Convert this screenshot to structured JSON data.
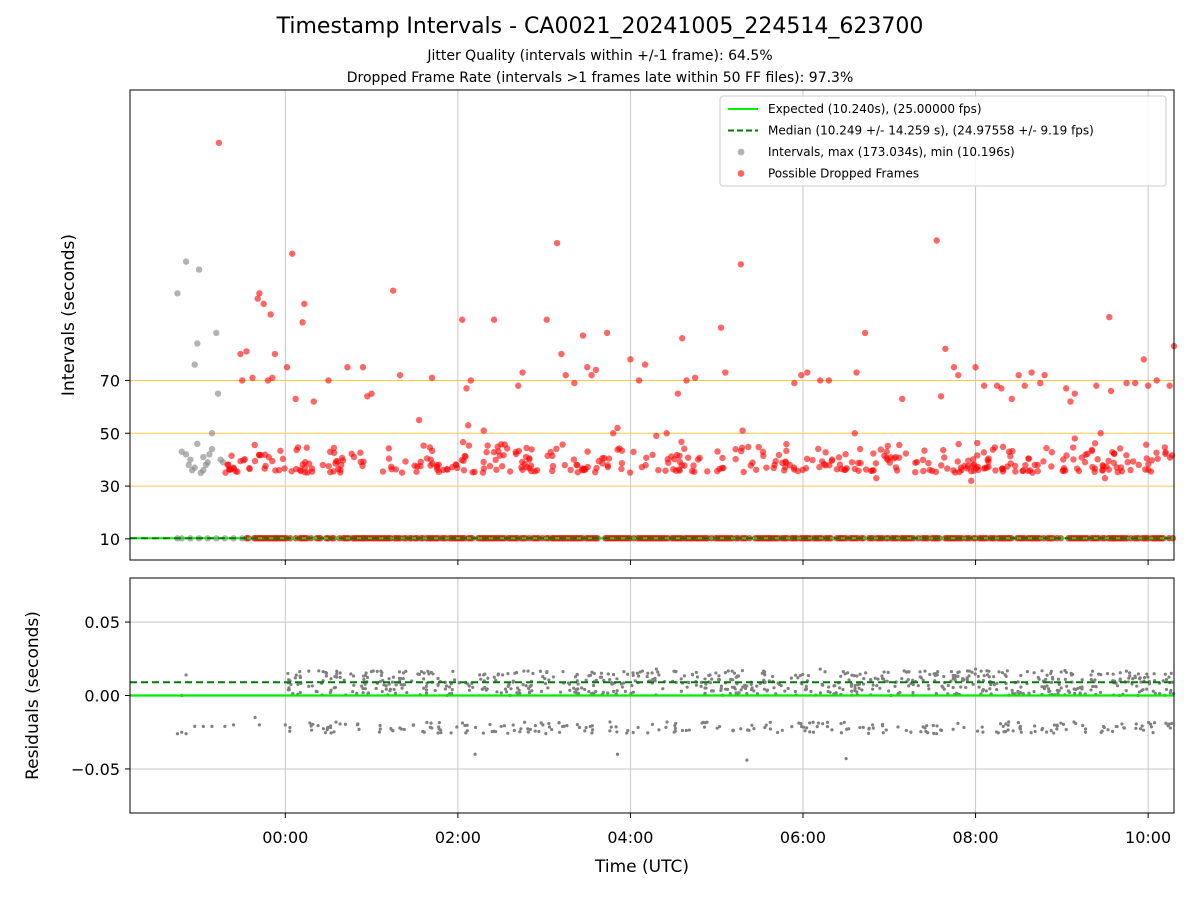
{
  "title": "Timestamp Intervals - CA0021_20241005_224514_623700",
  "subtitles": [
    "Jitter Quality (intervals within +/-1 frame): 64.5%",
    "Dropped Frame Rate (intervals >1 frames late within 50 FF files): 97.3%"
  ],
  "colors": {
    "expected": "#00ee00",
    "median": "#007a00",
    "intervals": "#808080",
    "dropped": "#ff0000",
    "threshold": "#ffc74d",
    "grid": "#c8c8c8"
  },
  "chart_data": [
    {
      "type": "scatter",
      "ylabel": "Intervals (seconds)",
      "xlabel": "",
      "x_axis": {
        "type": "time",
        "unit": "hours UTC from 2024-10-05 00:00",
        "xlim": [
          -1.8,
          10.3
        ],
        "ticks": [
          0,
          2,
          4,
          6,
          8,
          10
        ]
      },
      "ylim": [
        2,
        180
      ],
      "yticks": [
        10,
        30,
        50,
        70
      ],
      "yticklabels": [
        "10",
        "30",
        "50",
        "70"
      ],
      "grid": true,
      "threshold_lines": [
        30,
        50,
        70
      ],
      "legend": {
        "placement": "top-right",
        "entries": [
          {
            "label": "Expected (10.240s), (25.00000 fps)",
            "style": "solid-line",
            "color_key": "expected"
          },
          {
            "label": "Median (10.249 +/- 14.259 s), (24.97558 +/- 9.19 fps)",
            "style": "dashed-line",
            "color_key": "median"
          },
          {
            "label": "Intervals, max (173.034s), min (10.196s)",
            "style": "dot",
            "color_key": "intervals"
          },
          {
            "label": "Possible Dropped Frames",
            "style": "dot",
            "color_key": "dropped"
          }
        ]
      },
      "reference_lines": [
        {
          "name": "Expected",
          "y": 10.24
        },
        {
          "name": "Median",
          "y": 10.249
        }
      ],
      "series": [
        {
          "name": "Intervals",
          "points": [
            [
              -1.25,
              103
            ],
            [
              -1.15,
              115
            ],
            [
              -1.0,
              112
            ],
            [
              -1.1,
              40
            ],
            [
              -1.05,
              37
            ],
            [
              -0.98,
              35
            ],
            [
              -0.92,
              38
            ],
            [
              -0.88,
              42
            ],
            [
              -0.85,
              44
            ],
            [
              -1.2,
              43
            ],
            [
              -1.15,
              42
            ],
            [
              -1.12,
              38
            ],
            [
              -1.08,
              36
            ],
            [
              -1.02,
              46
            ],
            [
              -0.95,
              41
            ],
            [
              -0.85,
              50
            ],
            [
              -0.8,
              88
            ],
            [
              -0.78,
              65
            ],
            [
              -0.75,
              40
            ],
            [
              -0.72,
              39
            ],
            [
              -1.02,
              84
            ],
            [
              -1.05,
              76
            ],
            [
              -0.95,
              36
            ],
            [
              -0.9,
              39
            ],
            [
              -1.25,
              10.2
            ],
            [
              -1.2,
              10.2
            ],
            [
              -1.1,
              10.2
            ],
            [
              -1.0,
              10.2
            ],
            [
              -0.9,
              10.2
            ],
            [
              -0.8,
              10.2
            ],
            [
              -0.7,
              10.2
            ],
            [
              -0.6,
              10.2
            ],
            [
              -0.5,
              10.2
            ],
            [
              -0.3,
              10.2
            ],
            [
              -0.1,
              10.2
            ],
            [
              0.2,
              10.2
            ],
            [
              0.5,
              10.2
            ],
            [
              0.9,
              10.2
            ],
            [
              1.5,
              10.2
            ],
            [
              2.3,
              10.2
            ],
            [
              3.1,
              10.2
            ],
            [
              4.6,
              10.2
            ],
            [
              5.6,
              10.2
            ],
            [
              7.3,
              10.2
            ],
            [
              8.6,
              10.2
            ],
            [
              9.6,
              10.2
            ]
          ]
        },
        {
          "name": "Possible Dropped Frames",
          "points": [
            [
              -0.77,
              160
            ],
            [
              -0.52,
              80
            ],
            [
              -0.45,
              81
            ],
            [
              -0.5,
              70
            ],
            [
              -0.38,
              71
            ],
            [
              -0.3,
              103
            ],
            [
              -0.32,
              101
            ],
            [
              -0.25,
              99
            ],
            [
              -0.17,
              95
            ],
            [
              -0.12,
              80
            ],
            [
              -0.2,
              70
            ],
            [
              -0.15,
              71
            ],
            [
              0.08,
              118
            ],
            [
              0.02,
              75
            ],
            [
              0.12,
              63
            ],
            [
              0.22,
              99
            ],
            [
              0.2,
              92
            ],
            [
              0.33,
              62
            ],
            [
              0.5,
              70
            ],
            [
              0.72,
              75
            ],
            [
              0.9,
              75
            ],
            [
              0.95,
              64
            ],
            [
              1.0,
              65
            ],
            [
              1.25,
              104
            ],
            [
              1.33,
              72
            ],
            [
              1.7,
              71
            ],
            [
              2.05,
              93
            ],
            [
              2.1,
              67
            ],
            [
              2.15,
              70
            ],
            [
              2.42,
              93
            ],
            [
              2.7,
              68
            ],
            [
              2.75,
              73
            ],
            [
              3.03,
              93
            ],
            [
              3.15,
              122
            ],
            [
              3.2,
              80
            ],
            [
              3.25,
              72
            ],
            [
              3.35,
              69
            ],
            [
              3.45,
              87
            ],
            [
              3.5,
              75
            ],
            [
              3.6,
              74
            ],
            [
              3.73,
              88
            ],
            [
              3.55,
              72
            ],
            [
              4.0,
              78
            ],
            [
              4.1,
              70
            ],
            [
              4.17,
              76
            ],
            [
              4.55,
              65
            ],
            [
              4.6,
              86
            ],
            [
              4.65,
              70
            ],
            [
              4.75,
              71
            ],
            [
              5.05,
              90
            ],
            [
              5.1,
              73
            ],
            [
              5.28,
              114
            ],
            [
              5.9,
              69
            ],
            [
              5.98,
              72
            ],
            [
              6.05,
              73
            ],
            [
              6.3,
              70
            ],
            [
              6.62,
              73
            ],
            [
              6.72,
              88
            ],
            [
              7.15,
              63
            ],
            [
              7.55,
              123
            ],
            [
              7.6,
              64
            ],
            [
              7.65,
              82
            ],
            [
              7.75,
              75
            ],
            [
              7.8,
              72
            ],
            [
              8.0,
              75
            ],
            [
              8.1,
              68
            ],
            [
              8.25,
              68
            ],
            [
              8.3,
              67
            ],
            [
              8.42,
              63
            ],
            [
              8.5,
              72
            ],
            [
              8.57,
              68
            ],
            [
              8.65,
              73
            ],
            [
              8.75,
              69
            ],
            [
              8.8,
              72
            ],
            [
              9.05,
              67
            ],
            [
              9.1,
              62
            ],
            [
              9.15,
              65
            ],
            [
              9.4,
              68
            ],
            [
              9.55,
              94
            ],
            [
              9.57,
              66
            ],
            [
              9.75,
              69
            ],
            [
              9.85,
              69
            ],
            [
              9.95,
              78
            ],
            [
              10.0,
              68
            ],
            [
              10.1,
              70
            ],
            [
              10.25,
              68
            ],
            [
              10.3,
              83
            ],
            [
              6.2,
              70
            ],
            [
              3.85,
              52
            ],
            [
              5.3,
              51
            ],
            [
              6.6,
              50
            ],
            [
              9.15,
              48
            ],
            [
              9.45,
              50
            ],
            [
              9.5,
              33
            ],
            [
              6.85,
              33
            ],
            [
              7.95,
              32
            ],
            [
              1.55,
              55
            ],
            [
              2.12,
              53
            ],
            [
              2.3,
              51
            ],
            [
              3.8,
              50
            ],
            [
              4.3,
              49
            ],
            [
              4.42,
              50
            ]
          ],
          "cluster": {
            "x_range": [
              -0.7,
              10.3
            ],
            "y_range": [
              35,
              47
            ],
            "approx_count": 420
          }
        }
      ]
    },
    {
      "type": "scatter",
      "ylabel": "Residuals (seconds)",
      "xlabel": "Time (UTC)",
      "x_axis": {
        "type": "time",
        "xlim": [
          -1.8,
          10.3
        ],
        "ticks": [
          0,
          2,
          4,
          6,
          8,
          10
        ],
        "ticklabels": [
          "00:00",
          "02:00",
          "04:00",
          "06:00",
          "08:00",
          "10:00"
        ]
      },
      "ylim": [
        -0.08,
        0.08
      ],
      "yticks": [
        -0.05,
        0.0,
        0.05
      ],
      "yticklabels": [
        "−0.05",
        "0.00",
        "0.05"
      ],
      "grid": true,
      "reference_lines": [
        {
          "name": "Expected",
          "y": 0.0
        },
        {
          "name": "Median",
          "y": 0.009
        }
      ],
      "series": [
        {
          "name": "Residuals",
          "points": [
            [
              -1.25,
              -0.026
            ],
            [
              -1.2,
              -0.025
            ],
            [
              -1.15,
              -0.026
            ],
            [
              -1.05,
              -0.021
            ],
            [
              -0.95,
              -0.021
            ],
            [
              -0.85,
              -0.021
            ],
            [
              -0.7,
              -0.021
            ],
            [
              -0.6,
              -0.02
            ],
            [
              -1.15,
              0.014
            ],
            [
              -1.2,
              0.0
            ],
            [
              -0.35,
              -0.015
            ],
            [
              -0.3,
              -0.02
            ],
            [
              0.0,
              -0.02
            ],
            [
              2.2,
              -0.04
            ],
            [
              3.85,
              -0.04
            ],
            [
              5.35,
              -0.044
            ],
            [
              6.5,
              -0.043
            ],
            [
              4.3,
              0.018
            ],
            [
              6.2,
              0.018
            ],
            [
              8.0,
              0.018
            ]
          ],
          "clusters": [
            {
              "x_range": [
                0.0,
                10.3
              ],
              "y_range": [
                0.0,
                0.017
              ],
              "approx_count": 700
            },
            {
              "x_range": [
                0.0,
                10.3
              ],
              "y_range": [
                -0.026,
                -0.018
              ],
              "approx_count": 250
            }
          ]
        }
      ]
    }
  ]
}
